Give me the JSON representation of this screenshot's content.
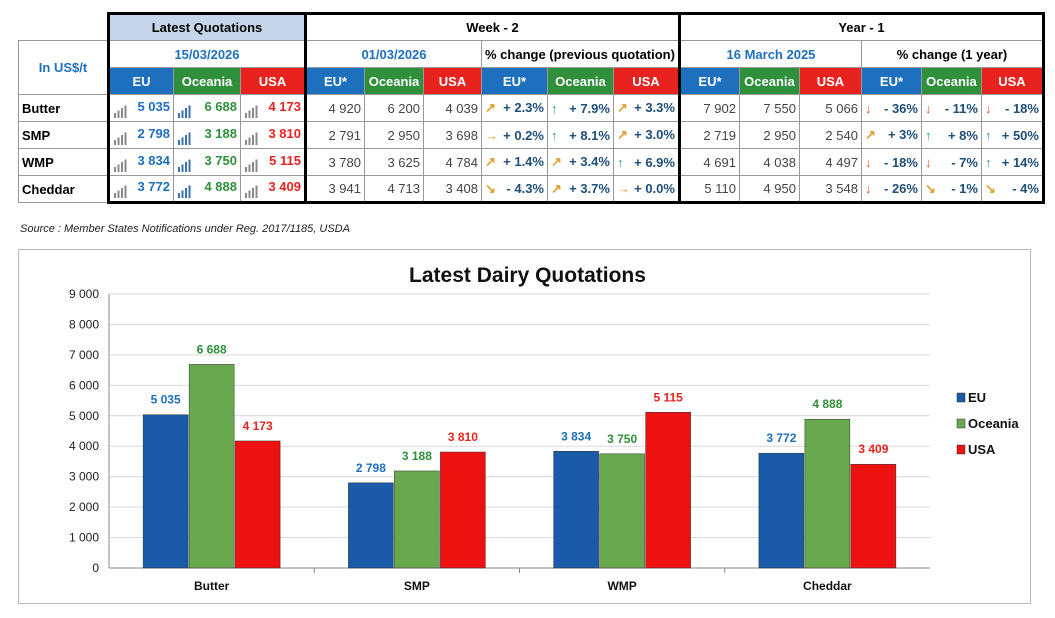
{
  "table": {
    "groups": {
      "latest": "Latest Quotations",
      "week": "Week - 2",
      "year": "Year - 1"
    },
    "unit_label": "In US$/t",
    "dates": {
      "latest": "15/03/2026",
      "week": "01/03/2026",
      "week_pct": "% change (previous quotation)",
      "year": "16 March 2025",
      "year_pct": "% change (1 year)"
    },
    "region_headers": {
      "latest": [
        "EU",
        "Oceania",
        "USA"
      ],
      "week": [
        "EU*",
        "Oceania",
        "USA"
      ],
      "week_pct": [
        "EU*",
        "Oceania",
        "USA"
      ],
      "year": [
        "EU*",
        "Oceania",
        "USA"
      ],
      "year_pct": [
        "EU*",
        "Oceania",
        "USA"
      ]
    },
    "rows": [
      {
        "product": "Butter",
        "latest": [
          "5 035",
          "6 688",
          "4 173"
        ],
        "week": [
          "4 920",
          "6 200",
          "4 039"
        ],
        "week_pct": [
          "+ 2.3%",
          "+ 7.9%",
          "+ 3.3%"
        ],
        "week_arrow": [
          "↗",
          "↑",
          "↗"
        ],
        "year": [
          "7 902",
          "7 550",
          "5 066"
        ],
        "year_pct": [
          "- 36%",
          "- 11%",
          "- 18%"
        ],
        "year_arrow": [
          "↓",
          "↓",
          "↓"
        ]
      },
      {
        "product": "SMP",
        "latest": [
          "2 798",
          "3 188",
          "3 810"
        ],
        "week": [
          "2 791",
          "2 950",
          "3 698"
        ],
        "week_pct": [
          "+ 0.2%",
          "+ 8.1%",
          "+ 3.0%"
        ],
        "week_arrow": [
          "→",
          "↑",
          "↗"
        ],
        "year": [
          "2 719",
          "2 950",
          "2 540"
        ],
        "year_pct": [
          "+ 3%",
          "+ 8%",
          "+ 50%"
        ],
        "year_arrow": [
          "↗",
          "↑",
          "↑"
        ]
      },
      {
        "product": "WMP",
        "latest": [
          "3 834",
          "3 750",
          "5 115"
        ],
        "week": [
          "3 780",
          "3 625",
          "4 784"
        ],
        "week_pct": [
          "+ 1.4%",
          "+ 3.4%",
          "+ 6.9%"
        ],
        "week_arrow": [
          "↗",
          "↗",
          "↑"
        ],
        "year": [
          "4 691",
          "4 038",
          "4 497"
        ],
        "year_pct": [
          "- 18%",
          "- 7%",
          "+ 14%"
        ],
        "year_arrow": [
          "↓",
          "↓",
          "↑"
        ]
      },
      {
        "product": "Cheddar",
        "latest": [
          "3 772",
          "4 888",
          "3 409"
        ],
        "week": [
          "3 941",
          "4 713",
          "3 408"
        ],
        "week_pct": [
          "- 4.3%",
          "+ 3.7%",
          "+ 0.0%"
        ],
        "week_arrow": [
          "↘",
          "↗",
          "→"
        ],
        "year": [
          "5 110",
          "4 950",
          "3 548"
        ],
        "year_pct": [
          "- 26%",
          "- 1%",
          "- 4%"
        ],
        "year_arrow": [
          "↓",
          "↘",
          "↘"
        ]
      }
    ]
  },
  "source": "Source : Member States Notifications under Reg. 2017/1185, USDA",
  "colors": {
    "eu": "#1f6fbf",
    "oceania": "#2f8f3a",
    "usa": "#e8231f",
    "eu_bar": "#1a5aa8",
    "oceania_bar": "#6aa84f",
    "usa_bar": "#ee1111",
    "up": "#2e9e6e",
    "down": "#d9531e",
    "flat": "#e0a030"
  },
  "chart_data": {
    "type": "bar",
    "title": "Latest Dairy Quotations",
    "categories": [
      "Butter",
      "SMP",
      "WMP",
      "Cheddar"
    ],
    "series": [
      {
        "name": "EU",
        "values": [
          5035,
          2798,
          3834,
          3772
        ],
        "labels": [
          "5 035",
          "2 798",
          "3 834",
          "3 772"
        ]
      },
      {
        "name": "Oceania",
        "values": [
          6688,
          3188,
          3750,
          4888
        ],
        "labels": [
          "6 688",
          "3 188",
          "3 750",
          "4 888"
        ]
      },
      {
        "name": "USA",
        "values": [
          4173,
          3810,
          5115,
          3409
        ],
        "labels": [
          "4 173",
          "3 810",
          "5 115",
          "3 409"
        ]
      }
    ],
    "ylim": [
      0,
      9000
    ],
    "yticks": [
      0,
      1000,
      2000,
      3000,
      4000,
      5000,
      6000,
      7000,
      8000,
      9000
    ],
    "ytick_labels": [
      "0",
      "1 000",
      "2 000",
      "3 000",
      "4 000",
      "5 000",
      "6 000",
      "7 000",
      "8 000",
      "9 000"
    ],
    "grid": true,
    "legend": "right",
    "xlabel": "",
    "ylabel": ""
  }
}
